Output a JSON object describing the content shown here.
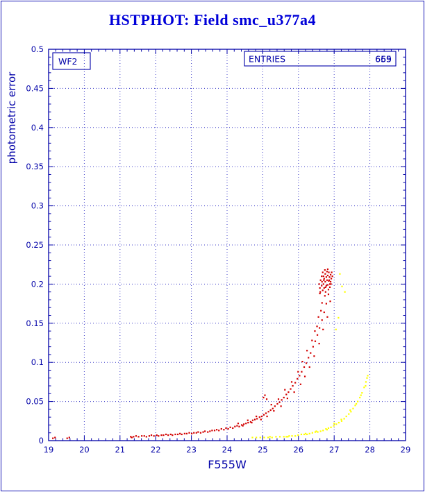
{
  "page": {
    "title": "HSTPHOT: Field smc_u377a4"
  },
  "plot": {
    "chip_label": "WF2",
    "entries_label": "ENTRIES",
    "entries_values": [
      "665",
      "659"
    ],
    "xlabel": "F555W",
    "ylabel": "photometric error",
    "colors": {
      "axis": "#0000a8",
      "grid": "#3c3cc8",
      "text": "#0000a8",
      "title": "#0000d9",
      "red": "#d20000",
      "yellow": "#ffff00"
    }
  },
  "chart_data": {
    "type": "scatter",
    "title": "HSTPHOT: Field smc_u377a4",
    "xlabel": "F555W",
    "ylabel": "photometric error",
    "xlim": [
      19,
      29
    ],
    "ylim": [
      0,
      0.5
    ],
    "xticks": [
      19,
      20,
      21,
      22,
      23,
      24,
      25,
      26,
      27,
      28,
      29
    ],
    "xtick_labels": [
      "19",
      "20",
      "21",
      "22",
      "23",
      "24",
      "25",
      "26",
      "27",
      "28",
      "29"
    ],
    "yticks": [
      0,
      0.05,
      0.1,
      0.15,
      0.2,
      0.25,
      0.3,
      0.35,
      0.4,
      0.45,
      0.5
    ],
    "ytick_labels": [
      "0",
      "0.05",
      "0.1",
      "0.15",
      "0.2",
      "0.25",
      "0.3",
      "0.35",
      "0.4",
      "0.45",
      "0.5"
    ],
    "grid": "dotted",
    "legend": "none",
    "annotations": [
      {
        "text": "WF2",
        "position": "top-left"
      },
      {
        "text": "ENTRIES",
        "values": [
          "665",
          "659"
        ],
        "position": "top-right"
      }
    ],
    "series": [
      {
        "name": "chip-yellow",
        "color": "#ffff00",
        "marker": "square",
        "points": [
          [
            24.71,
            0.004
          ],
          [
            24.82,
            0.004
          ],
          [
            24.93,
            0.004
          ],
          [
            25.04,
            0.004
          ],
          [
            25.15,
            0.004
          ],
          [
            25.26,
            0.004
          ],
          [
            25.37,
            0.005
          ],
          [
            25.48,
            0.005
          ],
          [
            25.59,
            0.005
          ],
          [
            25.66,
            0.005
          ],
          [
            25.74,
            0.006
          ],
          [
            25.82,
            0.006
          ],
          [
            25.91,
            0.006
          ],
          [
            25.99,
            0.007
          ],
          [
            26.08,
            0.008
          ],
          [
            26.16,
            0.008
          ],
          [
            26.24,
            0.008
          ],
          [
            26.31,
            0.009
          ],
          [
            26.39,
            0.01
          ],
          [
            26.47,
            0.011
          ],
          [
            26.54,
            0.011
          ],
          [
            26.62,
            0.012
          ],
          [
            26.69,
            0.013
          ],
          [
            26.77,
            0.015
          ],
          [
            26.84,
            0.016
          ],
          [
            26.91,
            0.017
          ],
          [
            26.99,
            0.019
          ],
          [
            27.06,
            0.021
          ],
          [
            27.13,
            0.023
          ],
          [
            27.21,
            0.025
          ],
          [
            27.28,
            0.028
          ],
          [
            27.34,
            0.031
          ],
          [
            27.41,
            0.034
          ],
          [
            27.47,
            0.037
          ],
          [
            27.53,
            0.041
          ],
          [
            27.59,
            0.045
          ],
          [
            27.66,
            0.05
          ],
          [
            27.72,
            0.055
          ],
          [
            27.78,
            0.061
          ],
          [
            27.84,
            0.068
          ],
          [
            27.89,
            0.075
          ],
          [
            27.94,
            0.083
          ],
          [
            25.2,
            0.005
          ],
          [
            25.7,
            0.005
          ],
          [
            26.2,
            0.009
          ],
          [
            26.5,
            0.012
          ],
          [
            26.8,
            0.014
          ],
          [
            27.0,
            0.022
          ],
          [
            27.2,
            0.027
          ],
          [
            27.45,
            0.039
          ],
          [
            27.62,
            0.047
          ],
          [
            27.75,
            0.058
          ],
          [
            27.88,
            0.07
          ],
          [
            27.92,
            0.08
          ],
          [
            27.16,
            0.213
          ],
          [
            27.22,
            0.197
          ],
          [
            27.12,
            0.157
          ],
          [
            27.05,
            0.142
          ],
          [
            27.3,
            0.19
          ]
        ]
      },
      {
        "name": "chip-red",
        "color": "#d20000",
        "marker": "square",
        "points": [
          [
            21.38,
            0.005
          ],
          [
            21.45,
            0.006
          ],
          [
            21.52,
            0.005
          ],
          [
            21.61,
            0.006
          ],
          [
            21.68,
            0.006
          ],
          [
            21.74,
            0.005
          ],
          [
            21.82,
            0.006
          ],
          [
            21.88,
            0.007
          ],
          [
            21.95,
            0.006
          ],
          [
            22.03,
            0.007
          ],
          [
            22.08,
            0.006
          ],
          [
            22.16,
            0.007
          ],
          [
            22.22,
            0.007
          ],
          [
            22.29,
            0.008
          ],
          [
            22.35,
            0.007
          ],
          [
            22.42,
            0.008
          ],
          [
            22.47,
            0.007
          ],
          [
            22.55,
            0.008
          ],
          [
            22.62,
            0.008
          ],
          [
            22.68,
            0.009
          ],
          [
            22.73,
            0.008
          ],
          [
            22.81,
            0.009
          ],
          [
            22.87,
            0.009
          ],
          [
            22.94,
            0.01
          ],
          [
            23.01,
            0.009
          ],
          [
            23.07,
            0.01
          ],
          [
            23.14,
            0.01
          ],
          [
            23.19,
            0.011
          ],
          [
            23.26,
            0.01
          ],
          [
            23.33,
            0.011
          ],
          [
            23.38,
            0.012
          ],
          [
            23.46,
            0.011
          ],
          [
            23.52,
            0.012
          ],
          [
            23.58,
            0.013
          ],
          [
            23.65,
            0.013
          ],
          [
            23.71,
            0.014
          ],
          [
            23.77,
            0.013
          ],
          [
            23.84,
            0.015
          ],
          [
            23.91,
            0.014
          ],
          [
            23.97,
            0.016
          ],
          [
            24.03,
            0.015
          ],
          [
            24.09,
            0.017
          ],
          [
            24.16,
            0.016
          ],
          [
            24.22,
            0.018
          ],
          [
            24.28,
            0.019
          ],
          [
            24.34,
            0.018
          ],
          [
            24.41,
            0.02
          ],
          [
            24.47,
            0.021
          ],
          [
            24.53,
            0.022
          ],
          [
            24.59,
            0.023
          ],
          [
            24.66,
            0.024
          ],
          [
            24.72,
            0.026
          ],
          [
            24.78,
            0.027
          ],
          [
            24.84,
            0.028
          ],
          [
            24.91,
            0.03
          ],
          [
            24.97,
            0.031
          ],
          [
            25.03,
            0.033
          ],
          [
            25.09,
            0.035
          ],
          [
            25.16,
            0.037
          ],
          [
            25.22,
            0.039
          ],
          [
            25.28,
            0.041
          ],
          [
            25.34,
            0.044
          ],
          [
            25.41,
            0.047
          ],
          [
            25.47,
            0.049
          ],
          [
            25.53,
            0.052
          ],
          [
            25.59,
            0.055
          ],
          [
            25.66,
            0.059
          ],
          [
            25.72,
            0.062
          ],
          [
            25.78,
            0.066
          ],
          [
            25.84,
            0.07
          ],
          [
            25.91,
            0.074
          ],
          [
            25.97,
            0.079
          ],
          [
            26.03,
            0.083
          ],
          [
            26.09,
            0.088
          ],
          [
            26.16,
            0.094
          ],
          [
            26.22,
            0.099
          ],
          [
            26.28,
            0.106
          ],
          [
            26.34,
            0.112
          ],
          [
            26.41,
            0.12
          ],
          [
            26.47,
            0.127
          ],
          [
            26.53,
            0.135
          ],
          [
            26.59,
            0.144
          ],
          [
            26.66,
            0.154
          ],
          [
            26.72,
            0.164
          ],
          [
            26.78,
            0.175
          ],
          [
            26.84,
            0.187
          ],
          [
            26.91,
            0.2
          ],
          [
            24.31,
            0.022
          ],
          [
            24.44,
            0.019
          ],
          [
            24.58,
            0.026
          ],
          [
            24.69,
            0.023
          ],
          [
            24.82,
            0.031
          ],
          [
            24.95,
            0.027
          ],
          [
            25.02,
            0.055
          ],
          [
            25.06,
            0.058
          ],
          [
            25.11,
            0.053
          ],
          [
            25.12,
            0.031
          ],
          [
            25.24,
            0.046
          ],
          [
            25.31,
            0.038
          ],
          [
            25.44,
            0.053
          ],
          [
            25.51,
            0.044
          ],
          [
            25.62,
            0.065
          ],
          [
            25.69,
            0.054
          ],
          [
            25.81,
            0.075
          ],
          [
            25.88,
            0.062
          ],
          [
            25.99,
            0.088
          ],
          [
            26.06,
            0.072
          ],
          [
            26.11,
            0.101
          ],
          [
            26.18,
            0.082
          ],
          [
            26.24,
            0.115
          ],
          [
            26.31,
            0.094
          ],
          [
            26.38,
            0.128
          ],
          [
            26.44,
            0.108
          ],
          [
            26.52,
            0.146
          ],
          [
            26.58,
            0.124
          ],
          [
            26.63,
            0.166
          ],
          [
            26.69,
            0.142
          ],
          [
            26.74,
            0.185
          ],
          [
            26.81,
            0.158
          ],
          [
            26.86,
            0.205
          ],
          [
            26.89,
            0.178
          ],
          [
            26.56,
            0.158
          ],
          [
            26.66,
            0.176
          ],
          [
            26.76,
            0.196
          ],
          [
            26.61,
            0.19
          ],
          [
            26.71,
            0.205
          ],
          [
            26.46,
            0.14
          ],
          [
            26.6,
            0.195
          ],
          [
            26.62,
            0.205
          ],
          [
            26.65,
            0.21
          ],
          [
            26.65,
            0.198
          ],
          [
            26.68,
            0.215
          ],
          [
            26.7,
            0.2
          ],
          [
            26.7,
            0.21
          ],
          [
            26.72,
            0.207
          ],
          [
            26.72,
            0.195
          ],
          [
            26.75,
            0.213
          ],
          [
            26.75,
            0.203
          ],
          [
            26.78,
            0.198
          ],
          [
            26.78,
            0.209
          ],
          [
            26.8,
            0.216
          ],
          [
            26.8,
            0.205
          ],
          [
            26.82,
            0.199
          ],
          [
            26.82,
            0.211
          ],
          [
            26.85,
            0.204
          ],
          [
            26.85,
            0.215
          ],
          [
            26.87,
            0.209
          ],
          [
            26.88,
            0.2
          ],
          [
            26.9,
            0.212
          ],
          [
            26.9,
            0.203
          ],
          [
            26.92,
            0.207
          ],
          [
            26.93,
            0.215
          ],
          [
            26.95,
            0.21
          ],
          [
            26.6,
            0.188
          ],
          [
            26.68,
            0.192
          ],
          [
            26.76,
            0.19
          ],
          [
            26.84,
            0.193
          ],
          [
            26.88,
            0.196
          ],
          [
            26.74,
            0.218
          ],
          [
            26.82,
            0.219
          ],
          [
            26.66,
            0.203
          ],
          [
            26.58,
            0.2
          ],
          [
            19.12,
            0.003
          ],
          [
            19.18,
            0.004
          ],
          [
            19.52,
            0.003
          ],
          [
            19.58,
            0.004
          ],
          [
            21.3,
            0.005
          ],
          [
            21.33,
            0.004
          ]
        ]
      }
    ]
  }
}
